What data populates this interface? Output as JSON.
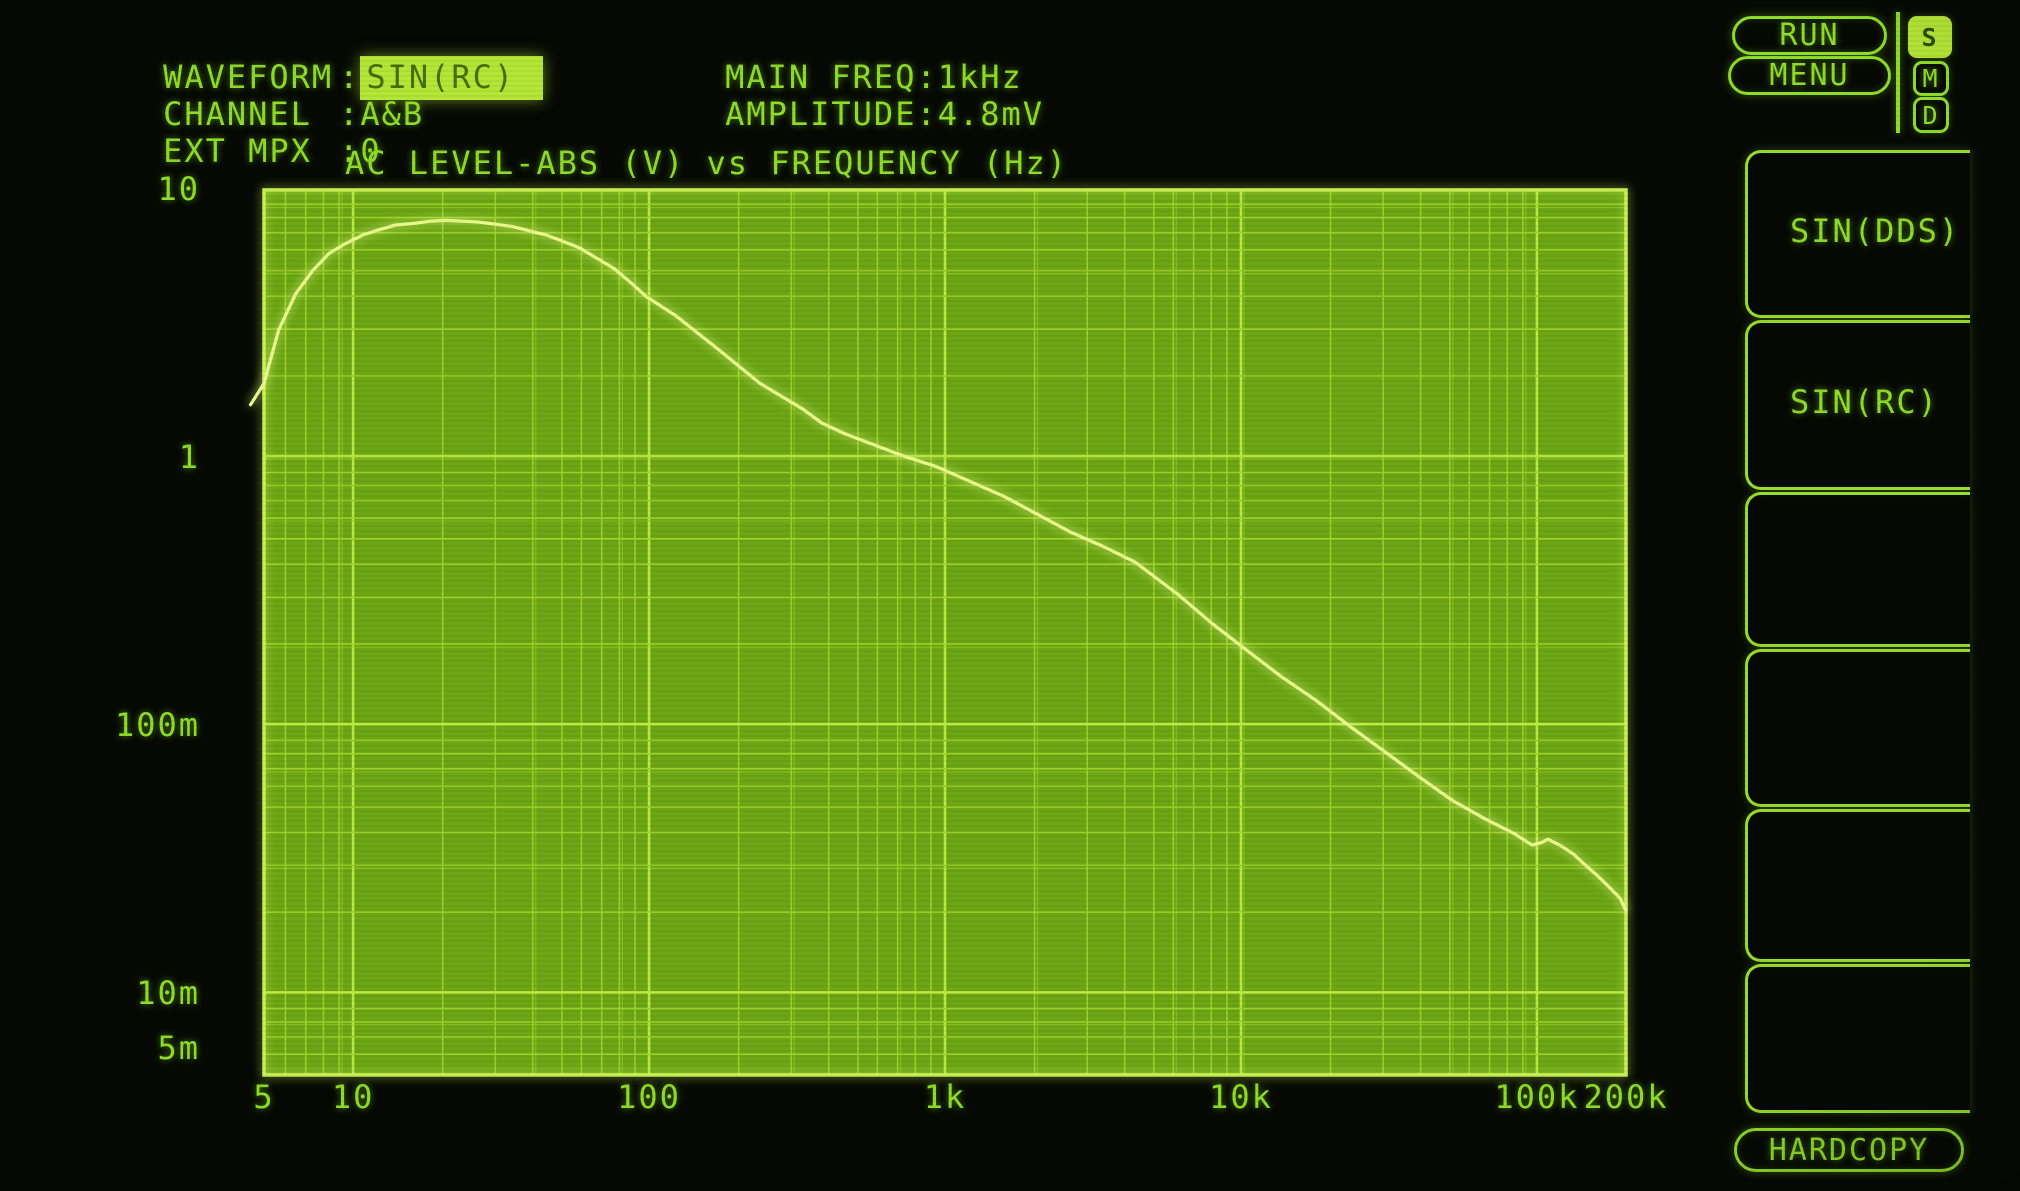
{
  "header": {
    "rows": [
      {
        "label": "WAVEFORM",
        "sep": ":",
        "value": "SIN(RC)",
        "highlighted": true
      },
      {
        "label": "CHANNEL",
        "sep": ":",
        "value": "A&B"
      },
      {
        "label": "EXT MPX",
        "sep": ":",
        "value": "0"
      }
    ],
    "main_freq": {
      "label": "MAIN FREQ",
      "sep": ":",
      "value": "1kHz"
    },
    "amplitude": {
      "label": "AMPLITUDE",
      "sep": ":",
      "value": "4.8mV"
    }
  },
  "panel": {
    "run": "RUN",
    "menu": "MENU",
    "indicators": [
      "S",
      "M",
      "D"
    ],
    "softkeys": [
      "SIN(DDS)",
      "SIN(RC)",
      "",
      "",
      "",
      ""
    ],
    "hardcopy": "HARDCOPY"
  },
  "colors": {
    "text_green": "#8fdd28",
    "highlight_fill": "#b4e636",
    "highlight_text": "#466f0c",
    "plot_fill": "#6ca614",
    "grid_minor": "#9dd028",
    "grid_major": "#bcea40",
    "plot_border": "#c9f254",
    "curve": "#ecfc8c",
    "background": "#060903"
  },
  "chart_data": {
    "type": "line",
    "title": "AC LEVEL-ABS (V) vs FREQUENCY (Hz)",
    "xlabel": "FREQUENCY (Hz)",
    "ylabel": "AC LEVEL-ABS (V)",
    "x_axis": {
      "scale": "log",
      "min": 5,
      "max": 200000,
      "tick_values": [
        5,
        10,
        100,
        1000,
        10000,
        100000,
        200000
      ],
      "tick_labels": [
        "5",
        "10",
        "100",
        "1k",
        "10k",
        "100k",
        "200k"
      ]
    },
    "y_axis": {
      "scale": "log",
      "min": 0.005,
      "max": 10,
      "tick_values": [
        10,
        1,
        0.1,
        0.01,
        0.005
      ],
      "tick_labels": [
        "10",
        "1",
        "100m",
        "10m",
        "5m"
      ]
    },
    "grid": true,
    "legend": false,
    "series": [
      {
        "name": "AC LEVEL-ABS",
        "points": [
          [
            4.5,
            1.58
          ],
          [
            5,
            1.9
          ],
          [
            5.6,
            3.0
          ],
          [
            6.4,
            4.1
          ],
          [
            7.3,
            5.0
          ],
          [
            8.3,
            5.8
          ],
          [
            9.4,
            6.3
          ],
          [
            10.8,
            6.8
          ],
          [
            12.2,
            7.1
          ],
          [
            13.9,
            7.4
          ],
          [
            15.9,
            7.5
          ],
          [
            18.2,
            7.65
          ],
          [
            20.6,
            7.7
          ],
          [
            23.5,
            7.65
          ],
          [
            26.6,
            7.6
          ],
          [
            30.3,
            7.45
          ],
          [
            34.6,
            7.3
          ],
          [
            39.2,
            7.05
          ],
          [
            44.8,
            6.8
          ],
          [
            51,
            6.45
          ],
          [
            58,
            6.1
          ],
          [
            66,
            5.6
          ],
          [
            76,
            5.1
          ],
          [
            86,
            4.55
          ],
          [
            98,
            4.0
          ],
          [
            123,
            3.4
          ],
          [
            171,
            2.55
          ],
          [
            237,
            1.9
          ],
          [
            329,
            1.53
          ],
          [
            384,
            1.35
          ],
          [
            461,
            1.23
          ],
          [
            552,
            1.14
          ],
          [
            720,
            1.02
          ],
          [
            933,
            0.93
          ],
          [
            1210,
            0.82
          ],
          [
            1580,
            0.72
          ],
          [
            2040,
            0.62
          ],
          [
            2650,
            0.53
          ],
          [
            3400,
            0.47
          ],
          [
            4380,
            0.41
          ],
          [
            6130,
            0.31
          ],
          [
            8050,
            0.24
          ],
          [
            10600,
            0.19
          ],
          [
            13700,
            0.153
          ],
          [
            17900,
            0.125
          ],
          [
            23300,
            0.1
          ],
          [
            30300,
            0.081
          ],
          [
            39800,
            0.065
          ],
          [
            51600,
            0.053
          ],
          [
            67100,
            0.045
          ],
          [
            83000,
            0.04
          ],
          [
            96500,
            0.036
          ],
          [
            104000,
            0.0369
          ],
          [
            109000,
            0.0379
          ],
          [
            121000,
            0.0357
          ],
          [
            133000,
            0.0333
          ],
          [
            145000,
            0.0305
          ],
          [
            159000,
            0.0279
          ],
          [
            175000,
            0.0252
          ],
          [
            191000,
            0.0228
          ],
          [
            200000,
            0.0205
          ]
        ]
      }
    ]
  }
}
